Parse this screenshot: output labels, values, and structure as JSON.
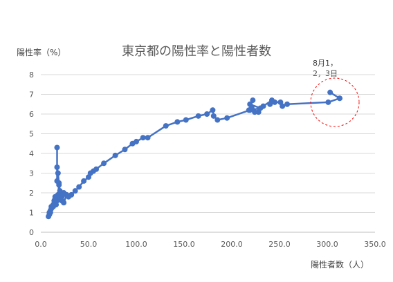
{
  "chart_data": {
    "type": "line",
    "title": "東京都の陽性率と陽性者数",
    "ylabel": "陽性率（%）",
    "xlabel": "陽性者数（人）",
    "xlim": [
      0,
      350
    ],
    "ylim": [
      0,
      8
    ],
    "xticks": [
      "0.0",
      "50.0",
      "100.0",
      "150.0",
      "200.0",
      "250.0",
      "300.0",
      "350.0"
    ],
    "yticks": [
      "0",
      "1",
      "2",
      "3",
      "4",
      "5",
      "6",
      "7",
      "8"
    ],
    "grid": true,
    "series_color": "#4472c4",
    "annotation_color": "#ff0000",
    "annotation": "8月1，\n2，3日",
    "series": [
      {
        "points": [
          [
            313,
            6.8
          ],
          [
            303,
            7.1
          ],
          [
            313,
            6.8
          ],
          [
            301,
            6.6
          ],
          [
            258,
            6.5
          ],
          [
            253,
            6.4
          ],
          [
            251,
            6.6
          ],
          [
            245,
            6.6
          ],
          [
            240,
            6.5
          ],
          [
            242,
            6.7
          ],
          [
            233,
            6.4
          ],
          [
            228,
            6.1
          ],
          [
            224,
            6.1
          ],
          [
            221,
            6.3
          ],
          [
            218,
            6.2
          ],
          [
            222,
            6.7
          ],
          [
            219,
            6.5
          ],
          [
            230,
            6.3
          ],
          [
            219,
            6.2
          ],
          [
            195,
            5.8
          ],
          [
            185,
            5.7
          ],
          [
            181,
            5.9
          ],
          [
            180,
            6.2
          ],
          [
            174,
            6.0
          ],
          [
            165,
            5.9
          ],
          [
            152,
            5.7
          ],
          [
            143,
            5.6
          ],
          [
            131,
            5.4
          ],
          [
            112,
            4.8
          ],
          [
            107,
            4.8
          ],
          [
            100,
            4.6
          ],
          [
            96,
            4.5
          ],
          [
            88,
            4.2
          ],
          [
            78,
            3.9
          ],
          [
            66,
            3.5
          ],
          [
            58,
            3.2
          ],
          [
            55,
            3.1
          ],
          [
            52,
            3.0
          ],
          [
            50,
            2.8
          ],
          [
            45,
            2.6
          ],
          [
            40,
            2.3
          ],
          [
            36,
            2.1
          ],
          [
            32,
            1.9
          ],
          [
            29,
            1.8
          ],
          [
            27,
            1.9
          ],
          [
            24,
            1.5
          ],
          [
            22,
            1.8
          ],
          [
            24,
            2.0
          ],
          [
            21,
            1.9
          ],
          [
            20,
            2.1
          ],
          [
            21,
            1.7
          ],
          [
            19,
            2.5
          ],
          [
            18,
            3.0
          ],
          [
            17,
            3.3
          ],
          [
            17,
            4.3
          ],
          [
            17,
            2.6
          ],
          [
            19,
            2.4
          ],
          [
            18,
            1.9
          ],
          [
            17,
            1.6
          ],
          [
            16,
            1.4
          ],
          [
            15,
            1.8
          ],
          [
            15,
            1.7
          ],
          [
            14,
            1.6
          ],
          [
            13,
            1.4
          ],
          [
            12,
            1.3
          ],
          [
            11,
            1.2
          ],
          [
            10,
            1.0
          ],
          [
            9,
            0.9
          ],
          [
            8,
            0.8
          ],
          [
            9,
            1.0
          ],
          [
            10,
            1.1
          ],
          [
            11,
            1.3
          ],
          [
            13,
            1.3
          ],
          [
            15,
            1.7
          ],
          [
            18,
            1.9
          ],
          [
            22,
            1.6
          ]
        ]
      }
    ]
  }
}
